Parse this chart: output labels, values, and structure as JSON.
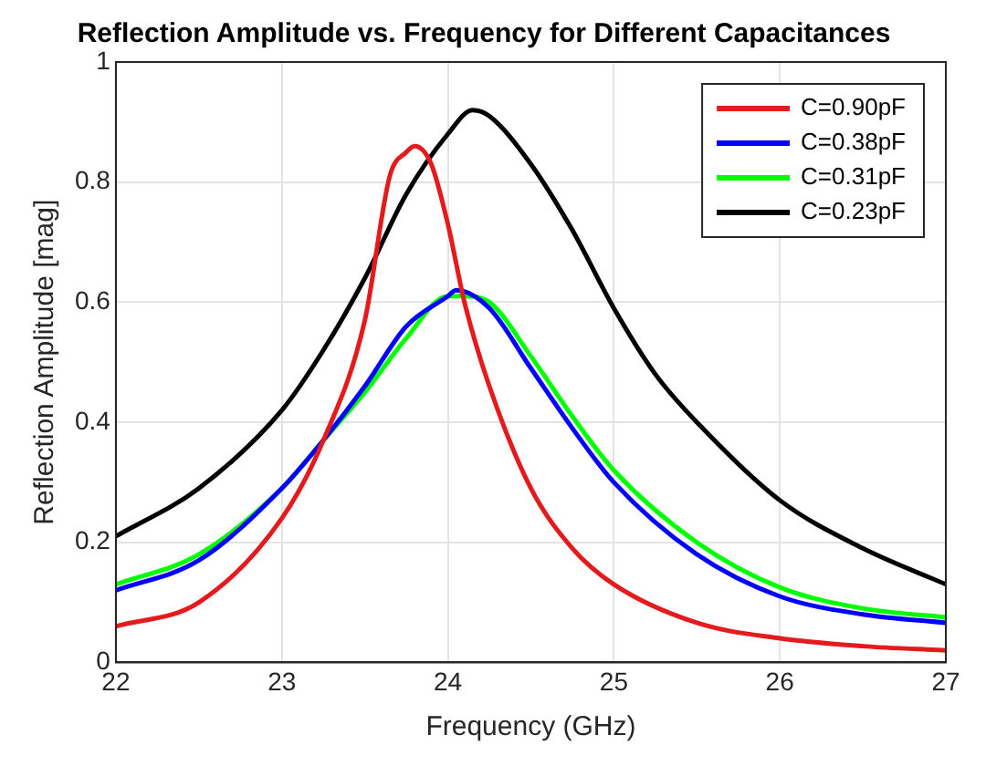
{
  "chart_data": {
    "type": "line",
    "title": "Reflection Amplitude vs. Frequency for Different Capacitances",
    "xlabel": "Frequency (GHz)",
    "ylabel": "Reflection Amplitude [mag]",
    "xlim": [
      22,
      27
    ],
    "xticks": [
      22,
      23,
      24,
      25,
      26,
      27
    ],
    "ylim": [
      0,
      1
    ],
    "yticks": [
      0,
      0.2,
      0.4,
      0.6,
      0.8,
      1
    ],
    "grid": true,
    "legend": "top right",
    "series": [
      {
        "name": "C=0.90pF",
        "color": "#e41a1c",
        "x": [
          22,
          22.5,
          23,
          23.25,
          23.5,
          23.65,
          23.75,
          23.8,
          23.9,
          24,
          24.1,
          24.25,
          24.5,
          24.75,
          25,
          25.5,
          26,
          26.5,
          27
        ],
        "values": [
          0.06,
          0.1,
          0.24,
          0.37,
          0.57,
          0.81,
          0.85,
          0.86,
          0.83,
          0.73,
          0.6,
          0.46,
          0.29,
          0.19,
          0.13,
          0.066,
          0.04,
          0.027,
          0.02
        ]
      },
      {
        "name": "C=0.38pF",
        "color": "#0000ff",
        "x": [
          22,
          22.5,
          23,
          23.25,
          23.5,
          23.75,
          24,
          24.05,
          24.25,
          24.5,
          24.75,
          25,
          25.5,
          26,
          26.5,
          27
        ],
        "values": [
          0.12,
          0.17,
          0.29,
          0.37,
          0.46,
          0.56,
          0.61,
          0.62,
          0.59,
          0.49,
          0.39,
          0.3,
          0.18,
          0.11,
          0.08,
          0.066
        ]
      },
      {
        "name": "C=0.31pF",
        "color": "#00ff00",
        "x": [
          22,
          22.5,
          23,
          23.25,
          23.5,
          23.75,
          24,
          24.1,
          24.25,
          24.5,
          24.75,
          25,
          25.5,
          26,
          26.5,
          27
        ],
        "values": [
          0.13,
          0.18,
          0.29,
          0.37,
          0.45,
          0.54,
          0.61,
          0.61,
          0.6,
          0.51,
          0.41,
          0.32,
          0.2,
          0.125,
          0.09,
          0.075
        ]
      },
      {
        "name": "C=0.23pF",
        "color": "#000000",
        "x": [
          22,
          22.5,
          23,
          23.25,
          23.5,
          23.75,
          24,
          24.15,
          24.25,
          24.5,
          24.75,
          25,
          25.25,
          25.5,
          26,
          26.5,
          27
        ],
        "values": [
          0.21,
          0.29,
          0.42,
          0.52,
          0.64,
          0.78,
          0.88,
          0.92,
          0.91,
          0.83,
          0.72,
          0.59,
          0.48,
          0.4,
          0.27,
          0.19,
          0.13
        ]
      }
    ]
  }
}
